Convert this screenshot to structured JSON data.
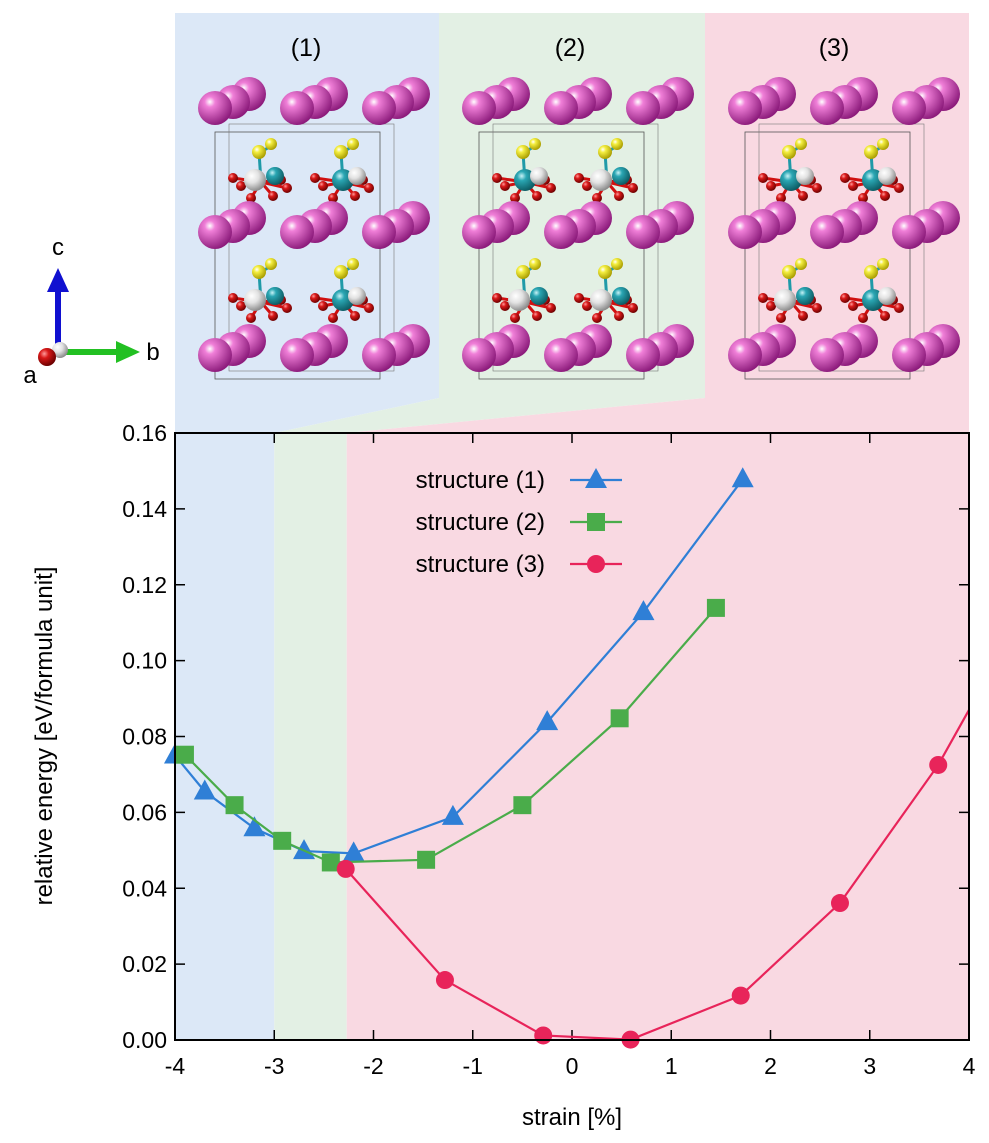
{
  "chart_data": {
    "type": "line",
    "xlabel": "strain [%]",
    "ylabel": "relative energy [eV/formula unit]",
    "xlim": [
      -4,
      4
    ],
    "ylim": [
      0,
      0.16
    ],
    "xticks": [
      "-4",
      "-3",
      "-2",
      "-1",
      "0",
      "1",
      "2",
      "3",
      "4"
    ],
    "yticks": [
      "0.00",
      "0.02",
      "0.04",
      "0.06",
      "0.08",
      "0.10",
      "0.12",
      "0.14",
      "0.16"
    ],
    "regions": [
      {
        "from": -4.0,
        "to": -3.0,
        "structure": "(1)",
        "color": "#dce8f7"
      },
      {
        "from": -3.0,
        "to": -2.27,
        "structure": "(2)",
        "color": "#e3f0e4"
      },
      {
        "from": -2.27,
        "to": 4.0,
        "structure": "(3)",
        "color": "#f9d9e2"
      }
    ],
    "series": [
      {
        "name": "structure (1)",
        "color": "#2f7fd6",
        "marker": "triangle",
        "x": [
          -4.0,
          -3.7,
          -3.2,
          -2.7,
          -2.2,
          -1.2,
          -0.25,
          0.72,
          1.72
        ],
        "y": [
          0.075,
          0.0655,
          0.0558,
          0.0498,
          0.0492,
          0.0588,
          0.0838,
          0.1128,
          0.1478
        ]
      },
      {
        "name": "structure (2)",
        "color": "#4aac4a",
        "marker": "square",
        "x": [
          -3.9,
          -3.4,
          -2.92,
          -2.43,
          -1.47,
          -0.5,
          0.48,
          1.45
        ],
        "y": [
          0.0752,
          0.0619,
          0.0525,
          0.0468,
          0.0475,
          0.0619,
          0.0848,
          0.1139
        ]
      },
      {
        "name": "structure (3)",
        "color": "#e8245a",
        "marker": "circle",
        "x": [
          -2.28,
          -1.28,
          -0.29,
          0.59,
          1.7,
          2.7,
          3.69,
          4.0
        ],
        "y": [
          0.0451,
          0.0158,
          0.0012,
          0.0001,
          0.0117,
          0.0361,
          0.0725,
          0.087
        ]
      }
    ]
  },
  "panels": {
    "labels": [
      "(1)",
      "(2)",
      "(3)"
    ],
    "colors": [
      "#dce8f7",
      "#e3f0e4",
      "#f9d9e2"
    ]
  },
  "axes_indicator": {
    "c": "c",
    "a": "a",
    "b": "b"
  },
  "atom_colors": {
    "large": "#c23aa6",
    "yellow": "#e9e214",
    "teal": "#1f9aa8",
    "white": "#dcdcdc",
    "red": "#d01010"
  }
}
